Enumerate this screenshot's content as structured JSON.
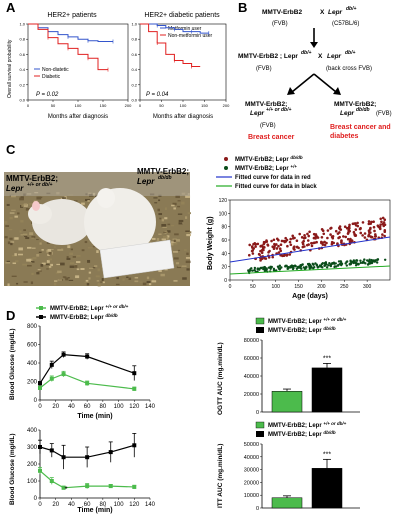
{
  "panels": {
    "A": "A",
    "B": "B",
    "C": "C",
    "D": "D"
  },
  "panelA": {
    "left": {
      "title": "HER2+ patients",
      "ylabel": "Overall survival probability",
      "xlabel": "Months after diagnosis",
      "legend": [
        "Non-diatetic",
        "Diabetic"
      ],
      "pvalue": "P = 0.02",
      "xticks": [
        "0",
        "50",
        "100",
        "150",
        "200"
      ],
      "yticks": [
        "0.0",
        "0.2",
        "0.4",
        "0.6",
        "0.8",
        "1.0"
      ]
    },
    "right": {
      "title": "HER2+ diabetic patients",
      "xlabel": "Months after diagnosis",
      "legend": [
        "Metformin user",
        "Non-metformin user"
      ],
      "pvalue": "P = 0.04",
      "xticks": [
        "0",
        "50",
        "100",
        "150",
        "200"
      ],
      "yticks": [
        "0.0",
        "0.2",
        "0.4",
        "0.6",
        "0.8",
        "1.0"
      ]
    }
  },
  "panelB": {
    "top_left": "MMTV-ErbB2",
    "x1": "X",
    "top_right": "Lepr",
    "top_right_sup": "db/+",
    "fvb1": "(FVB)",
    "c57": "(C57BL/6)",
    "mid_left": "MMTV-ErbB2 ; Lepr",
    "mid_left_sup": "db/+",
    "x2": "X",
    "mid_right": "Lepr",
    "mid_right_sup": "db/+",
    "fvb2": "(FVB)",
    "backcross": "(back cross FVB)",
    "bot_left_1": "MMTV-ErbB2;",
    "bot_left_2": "Lepr",
    "bot_left_sup": "+/+ or db/+",
    "fvb3": "(FVB)",
    "bot_left_red": "Breast cancer",
    "bot_right_1": "MMTV-ErbB2;",
    "bot_right_2": "Lepr",
    "bot_right_sup": "db/db",
    "fvb4": "(FVB)",
    "bot_right_red_1": "Breast cancer and",
    "bot_right_red_2": "diabetes"
  },
  "panelC": {
    "photo_label_left_1": "MMTV-ErbB2;",
    "photo_label_left_2": "Lepr",
    "photo_label_left_sup": "+/+ or db/+",
    "photo_label_right_1": "MMTV-ErbB2;",
    "photo_label_right_2": "Lepr",
    "photo_label_right_sup": "db/db",
    "legend": [
      {
        "label": "MMTV-ErbB2; Lepr",
        "sup": "db/db",
        "color": "#8b1a1a"
      },
      {
        "label": "MMTV-ErbB2; Lepr",
        "sup": "+/+",
        "color": "#0a4d1a"
      },
      {
        "label": "Fitted curve for data in red",
        "sup": "",
        "color": "#2233cc"
      },
      {
        "label": "Fitted curve for data in black",
        "sup": "",
        "color": "#22aa22"
      }
    ],
    "ylabel": "Body Weight (g)",
    "xlabel": "Age (days)",
    "xticks": [
      "0",
      "50",
      "100",
      "150",
      "200",
      "250",
      "300"
    ],
    "yticks": [
      "0",
      "20",
      "40",
      "60",
      "80",
      "100",
      "120"
    ]
  },
  "panelD": {
    "ogtt_legend": [
      "MMTV-ErbB2; Lepr",
      "MMTV-ErbB2; Lepr"
    ],
    "ogtt_legend_sup": [
      "+/+ or db/+",
      "db/db"
    ],
    "ogtt_ylabel": "Blood Glucose (mg/dL)",
    "ogtt_xlabel": "Time (min)",
    "ogtt_yticks": [
      "0",
      "200",
      "400",
      "600",
      "800"
    ],
    "ogtt_xticks": [
      "0",
      "20",
      "40",
      "60",
      "80",
      "100",
      "120",
      "140"
    ],
    "ogtt_auc_ylabel": "OGTT AUC (mg.min/dL)",
    "ogtt_auc_yticks": [
      "0",
      "20000",
      "40000",
      "60000",
      "80000"
    ],
    "ogtt_auc_sig": "***",
    "itt_ylabel": "Blood Glucose (mg/dL)",
    "itt_xlabel": "Time (min)",
    "itt_yticks": [
      "0",
      "100",
      "200",
      "300",
      "400"
    ],
    "itt_xticks": [
      "0",
      "20",
      "40",
      "60",
      "80",
      "100",
      "120",
      "140"
    ],
    "itt_sig": "*",
    "itt_auc_ylabel": "ITT AUC (mg.min/dL)",
    "itt_auc_yticks": [
      "0",
      "10000",
      "20000",
      "30000",
      "40000",
      "50000"
    ],
    "itt_auc_sig": "***",
    "itt_auc_legend": [
      "MMTV-ErbB2; Lepr",
      "MMTV-ErbB2; Lepr"
    ],
    "itt_auc_legend_sup": [
      "+/+ or db/+",
      "db/db"
    ]
  },
  "colors": {
    "red": "#e02020",
    "blue": "#3355cc",
    "green": "#4cbb4c",
    "black": "#000000",
    "darkred": "#8b1a1a",
    "darkgreen": "#0a4d1a"
  },
  "chart_data": [
    {
      "type": "line",
      "title": "HER2+ patients",
      "xlabel": "Months after diagnosis",
      "ylabel": "Overall survival probability",
      "series": [
        {
          "name": "Non-diatetic",
          "x": [
            0,
            20,
            40,
            60,
            80,
            100,
            120,
            140,
            170
          ],
          "values": [
            1.0,
            0.95,
            0.9,
            0.86,
            0.83,
            0.8,
            0.78,
            0.77,
            0.77
          ]
        },
        {
          "name": "Diabetic",
          "x": [
            0,
            20,
            40,
            60,
            80,
            100,
            120,
            140,
            160
          ],
          "values": [
            1.0,
            0.93,
            0.82,
            0.74,
            0.68,
            0.6,
            0.55,
            0.4,
            0.4
          ]
        }
      ],
      "xlim": [
        0,
        200
      ],
      "ylim": [
        0,
        1
      ]
    },
    {
      "type": "line",
      "title": "HER2+ diabetic patients",
      "xlabel": "Months after diagnosis",
      "ylabel": "",
      "series": [
        {
          "name": "Metformin user",
          "x": [
            0,
            20,
            40,
            60,
            80,
            100,
            120,
            140,
            160
          ],
          "values": [
            1.0,
            1.0,
            0.98,
            0.95,
            0.93,
            0.9,
            0.9,
            0.88,
            0.88
          ]
        },
        {
          "name": "Non-metformin user",
          "x": [
            0,
            20,
            40,
            60,
            80,
            100,
            120,
            140
          ],
          "values": [
            1.0,
            0.9,
            0.75,
            0.6,
            0.52,
            0.48,
            0.44,
            0.44
          ]
        }
      ],
      "xlim": [
        0,
        200
      ],
      "ylim": [
        0,
        1
      ]
    },
    {
      "type": "line",
      "xlabel": "Time (min)",
      "ylabel": "Blood Glucose (mg/dL)",
      "x": [
        0,
        15,
        30,
        60,
        120
      ],
      "series": [
        {
          "name": "MMTV-ErbB2; Lepr +/+ or db/+",
          "values": [
            130,
            230,
            280,
            180,
            120
          ],
          "err": [
            20,
            30,
            30,
            25,
            20
          ]
        },
        {
          "name": "MMTV-ErbB2; Lepr db/db",
          "values": [
            180,
            380,
            490,
            470,
            290
          ],
          "err": [
            20,
            40,
            30,
            30,
            80
          ]
        }
      ],
      "ylim": [
        0,
        800
      ]
    },
    {
      "type": "bar",
      "ylabel": "OGTT AUC (mg.min/dL)",
      "categories": [
        "MMTV-ErbB2; Lepr +/+ or db/+",
        "MMTV-ErbB2; Lepr db/db"
      ],
      "values": [
        23000,
        49000
      ],
      "err": [
        2500,
        5000
      ],
      "ylim": [
        0,
        80000
      ]
    },
    {
      "type": "line",
      "xlabel": "Time (min)",
      "ylabel": "Blood Glucose (mg/dL)",
      "x": [
        0,
        15,
        30,
        60,
        90,
        120
      ],
      "series": [
        {
          "name": "MMTV-ErbB2; Lepr +/+ or db/+",
          "values": [
            160,
            100,
            60,
            70,
            70,
            65
          ],
          "err": [
            20,
            20,
            10,
            15,
            10,
            10
          ]
        },
        {
          "name": "MMTV-ErbB2; Lepr db/db",
          "values": [
            300,
            280,
            240,
            240,
            270,
            310
          ],
          "err": [
            40,
            40,
            70,
            60,
            60,
            70
          ]
        }
      ],
      "ylim": [
        0,
        400
      ]
    },
    {
      "type": "bar",
      "ylabel": "ITT AUC (mg.min/dL)",
      "categories": [
        "MMTV-ErbB2; Lepr +/+ or db/+",
        "MMTV-ErbB2; Lepr db/db"
      ],
      "values": [
        8000,
        31000
      ],
      "err": [
        1500,
        7000
      ],
      "ylim": [
        0,
        50000
      ]
    }
  ]
}
